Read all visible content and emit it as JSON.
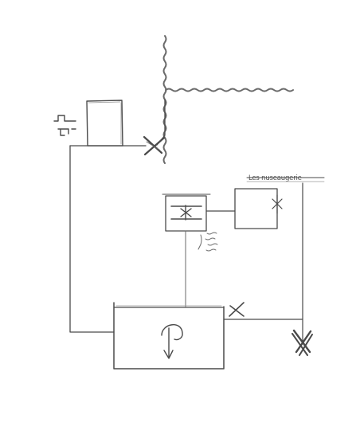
{
  "diagram": {
    "label": "Les nuseaugerie",
    "style": "pencil sketch",
    "ink_color": "#4a4a4a",
    "background": "#ffffff",
    "components": [
      {
        "id": "top-box",
        "kind": "small-tank",
        "symbol": "none"
      },
      {
        "id": "middle-box",
        "kind": "mixer-unit",
        "symbol": "cross-with-bars"
      },
      {
        "id": "right-box",
        "kind": "unit-with-valve",
        "symbol": "cross-mark"
      },
      {
        "id": "bottom-box",
        "kind": "tank-with-pump",
        "symbol": "curved-arrow-down"
      }
    ],
    "valves": [
      {
        "id": "valve-top",
        "symbol": "x-mark"
      },
      {
        "id": "valve-bottom-right",
        "symbol": "x-mark"
      },
      {
        "id": "valve-far-right",
        "symbol": "double-x-mark"
      }
    ],
    "wall": {
      "kind": "wavy-wall",
      "edges": [
        "vertical",
        "horizontal"
      ]
    }
  }
}
